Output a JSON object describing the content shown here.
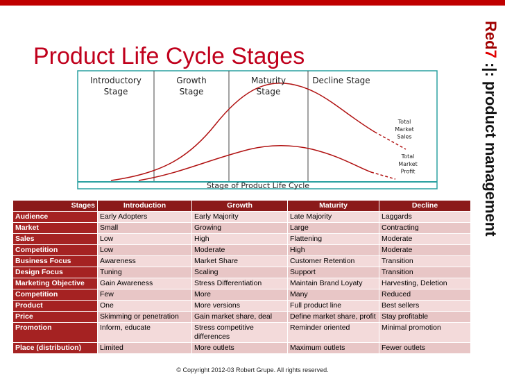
{
  "title": "Product Life Cycle Stages",
  "brand": {
    "part1": "Red",
    "part2": "7",
    "part3": ":|: product management"
  },
  "diagram": {
    "stages": [
      "Introductory Stage",
      "Growth Stage",
      "Maturity Stage",
      "Decline Stage"
    ],
    "sales_label": "Total Market Sales",
    "profit_label": "Total Market Profit",
    "axis_label": "Stage of Product Life Cycle"
  },
  "table": {
    "header": [
      "Stages",
      "Introduction",
      "Growth",
      "Maturity",
      "Decline"
    ],
    "rows": [
      [
        "Audience",
        "Early Adopters",
        "Early Majority",
        "Late Majority",
        "Laggards"
      ],
      [
        "Market",
        "Small",
        "Growing",
        "Large",
        "Contracting"
      ],
      [
        "Sales",
        "Low",
        "High",
        "Flattening",
        "Moderate"
      ],
      [
        "Competition",
        "Low",
        "Moderate",
        "High",
        "Moderate"
      ],
      [
        "Business Focus",
        "Awareness",
        "Market Share",
        "Customer Retention",
        "Transition"
      ],
      [
        "Design Focus",
        "Tuning",
        "Scaling",
        "Support",
        "Transition"
      ],
      [
        "Marketing Objective",
        "Gain Awareness",
        "Stress Differentiation",
        "Maintain Brand Loyaty",
        "Harvesting, Deletion"
      ],
      [
        "Competition",
        "Few",
        "More",
        "Many",
        "Reduced"
      ],
      [
        "Product",
        "One",
        "More versions",
        "Full product line",
        "Best sellers"
      ],
      [
        "Price",
        "Skimming or penetration",
        "Gain market share, deal",
        "Define market share, profit",
        "Stay profitable"
      ],
      [
        "Promotion",
        "Inform, educate",
        "Stress competitive differences",
        "Reminder oriented",
        "Minimal promotion"
      ],
      [
        "Place (distribution)",
        "Limited",
        "More outlets",
        "Maximum outlets",
        "Fewer outlets"
      ]
    ]
  },
  "footer": "© Copyright 2012-03 Robert Grupe.  All rights reserved."
}
